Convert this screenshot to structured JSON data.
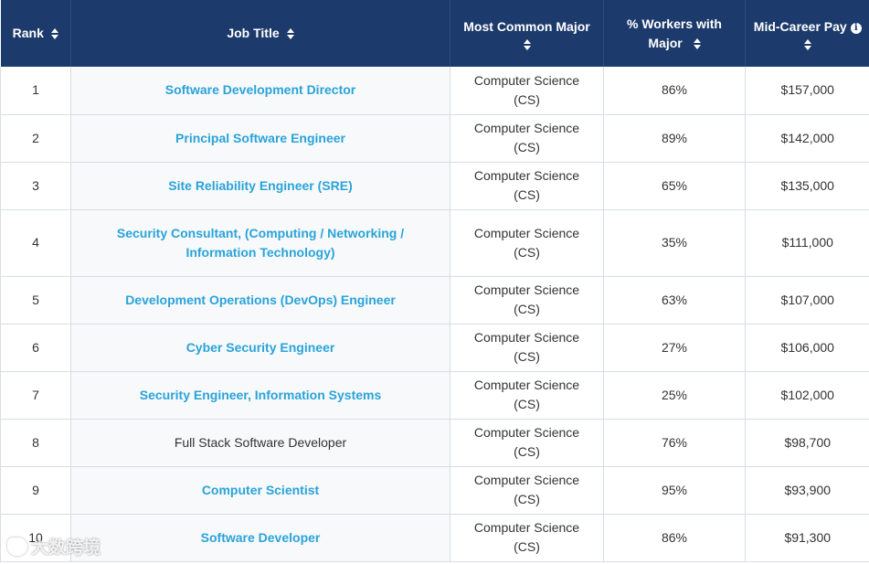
{
  "table": {
    "headers": {
      "rank": "Rank",
      "job_title": "Job Title",
      "major": "Most Common Major",
      "pct": "% Workers with Major",
      "pay": "Mid-Career Pay"
    },
    "rows": [
      {
        "rank": "1",
        "title": "Software Development Director",
        "link": true,
        "major": "Computer Science (CS)",
        "pct": "86%",
        "pay": "$157,000"
      },
      {
        "rank": "2",
        "title": "Principal Software Engineer",
        "link": true,
        "major": "Computer Science (CS)",
        "pct": "89%",
        "pay": "$142,000"
      },
      {
        "rank": "3",
        "title": "Site Reliability Engineer (SRE)",
        "link": true,
        "major": "Computer Science (CS)",
        "pct": "65%",
        "pay": "$135,000"
      },
      {
        "rank": "4",
        "title": "Security Consultant, (Computing / Networking / Information Technology)",
        "link": true,
        "major": "Computer Science (CS)",
        "pct": "35%",
        "pay": "$111,000"
      },
      {
        "rank": "5",
        "title": "Development Operations (DevOps) Engineer",
        "link": true,
        "major": "Computer Science (CS)",
        "pct": "63%",
        "pay": "$107,000"
      },
      {
        "rank": "6",
        "title": "Cyber Security Engineer",
        "link": true,
        "major": "Computer Science (CS)",
        "pct": "27%",
        "pay": "$106,000"
      },
      {
        "rank": "7",
        "title": "Security Engineer, Information Systems",
        "link": true,
        "major": "Computer Science (CS)",
        "pct": "25%",
        "pay": "$102,000"
      },
      {
        "rank": "8",
        "title": "Full Stack Software Developer",
        "link": false,
        "major": "Computer Science (CS)",
        "pct": "76%",
        "pay": "$98,700"
      },
      {
        "rank": "9",
        "title": "Computer Scientist",
        "link": true,
        "major": "Computer Science (CS)",
        "pct": "95%",
        "pay": "$93,900"
      },
      {
        "rank": "10",
        "title": "Software Developer",
        "link": true,
        "major": "Computer Science (CS)",
        "pct": "86%",
        "pay": "$91,300"
      }
    ]
  },
  "watermark": {
    "text": "大数跨境"
  },
  "colors": {
    "header_bg": "#1c3a6b",
    "link": "#2aa3d9",
    "text": "#333333",
    "border": "#d9dde3"
  },
  "icons": {
    "sort": "sort-icon",
    "info": "info-icon"
  }
}
